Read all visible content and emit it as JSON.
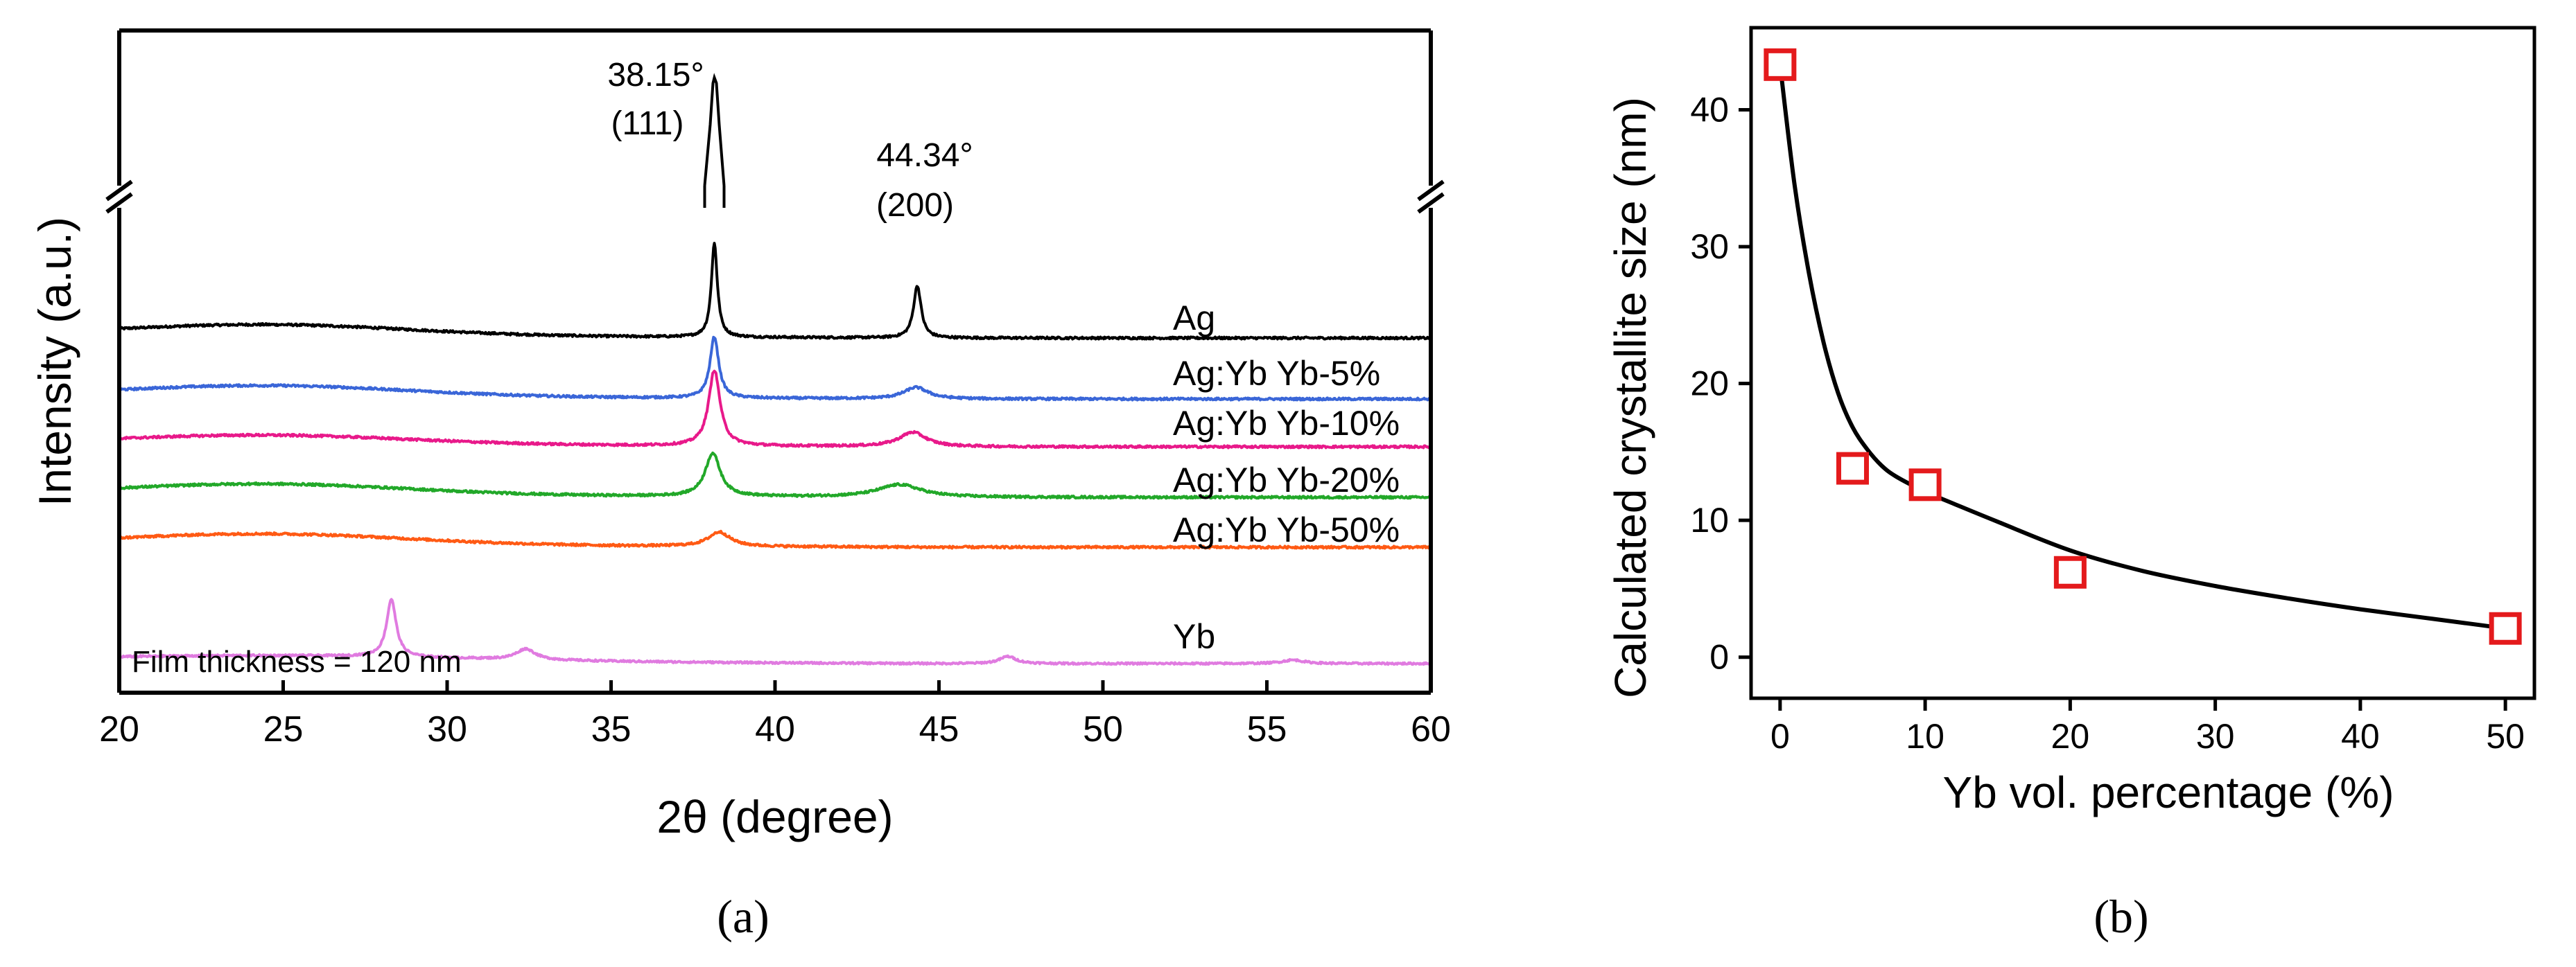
{
  "chart_data": [
    {
      "panel": "(a)",
      "type": "line",
      "xlabel": "2θ (degree)",
      "ylabel": "Intensity (a.u.)",
      "xlim": [
        20,
        60
      ],
      "xticks": [
        20,
        25,
        30,
        35,
        40,
        45,
        50,
        55,
        60
      ],
      "grid": false,
      "y_axis_break": true,
      "annotations": [
        {
          "id": "peak111",
          "angle": "38.15°",
          "plane": "(111)",
          "x": 38.15
        },
        {
          "id": "peak200",
          "angle": "44.34°",
          "plane": "(200)",
          "x": 44.34
        }
      ],
      "note": "Film thickness = 120 nm",
      "series": [
        {
          "name": "Ag",
          "color": "#000000",
          "peaks": [
            {
              "x": 38.15,
              "height": 2.6,
              "width": 0.22
            },
            {
              "x": 44.34,
              "height": 1.45,
              "width": 0.28
            }
          ],
          "hump": {
            "x": 24.5,
            "height": 0.3,
            "width": 6
          },
          "noise": 0.06
        },
        {
          "name": "Ag:Yb Yb-5%",
          "color": "#3a66d8",
          "peaks": [
            {
              "x": 38.15,
              "height": 1.7,
              "width": 0.32
            },
            {
              "x": 44.3,
              "height": 0.32,
              "width": 0.9
            }
          ],
          "hump": {
            "x": 24.5,
            "height": 0.3,
            "width": 6
          },
          "noise": 0.06
        },
        {
          "name": "Ag:Yb Yb-10%",
          "color": "#e8198a",
          "peaks": [
            {
              "x": 38.15,
              "height": 2.1,
              "width": 0.42
            },
            {
              "x": 44.2,
              "height": 0.4,
              "width": 1.0
            }
          ],
          "hump": {
            "x": 24.5,
            "height": 0.25,
            "width": 6
          },
          "noise": 0.06
        },
        {
          "name": "Ag:Yb Yb-20%",
          "color": "#22a829",
          "peaks": [
            {
              "x": 38.1,
              "height": 1.2,
              "width": 0.55
            },
            {
              "x": 43.8,
              "height": 0.35,
              "width": 1.6
            }
          ],
          "hump": {
            "x": 24.5,
            "height": 0.3,
            "width": 6
          },
          "noise": 0.06
        },
        {
          "name": "Ag:Yb Yb-50%",
          "color": "#ff5a14",
          "peaks": [
            {
              "x": 38.3,
              "height": 0.4,
              "width": 0.8
            }
          ],
          "hump": {
            "x": 24.5,
            "height": 0.3,
            "width": 6
          },
          "noise": 0.06
        },
        {
          "name": "Yb",
          "color": "#e07be0",
          "peaks": [
            {
              "x": 28.3,
              "height": 1.6,
              "width": 0.35
            },
            {
              "x": 32.4,
              "height": 0.3,
              "width": 0.7
            },
            {
              "x": 47.1,
              "height": 0.2,
              "width": 0.6
            },
            {
              "x": 55.8,
              "height": 0.1,
              "width": 0.8
            }
          ],
          "hump": {
            "x": 25,
            "height": 0.15,
            "width": 8
          },
          "noise": 0.05
        }
      ]
    },
    {
      "panel": "(b)",
      "type": "scatter",
      "xlabel": "Yb vol. percentage (%)",
      "ylabel": "Calculated crystallite size (nm)",
      "xlim": [
        -2,
        52
      ],
      "ylim": [
        -3,
        46
      ],
      "xticks": [
        0,
        10,
        20,
        30,
        40,
        50
      ],
      "yticks": [
        0,
        10,
        20,
        30,
        40
      ],
      "grid": false,
      "marker_color": "#e41a1c",
      "line_color": "#000000",
      "x": [
        0,
        5,
        10,
        20,
        50
      ],
      "y": [
        43.3,
        13.8,
        12.6,
        6.2,
        2.1
      ],
      "fit_curve": {
        "x": [
          0,
          1,
          2,
          3,
          4,
          5,
          6,
          7,
          8,
          10,
          12,
          15,
          20,
          25,
          30,
          35,
          40,
          45,
          50
        ],
        "y": [
          43.3,
          34.5,
          28.0,
          23.0,
          19.3,
          16.8,
          15.2,
          14.0,
          13.2,
          12.1,
          11.2,
          9.9,
          7.8,
          6.3,
          5.2,
          4.3,
          3.5,
          2.8,
          2.1
        ]
      }
    }
  ]
}
